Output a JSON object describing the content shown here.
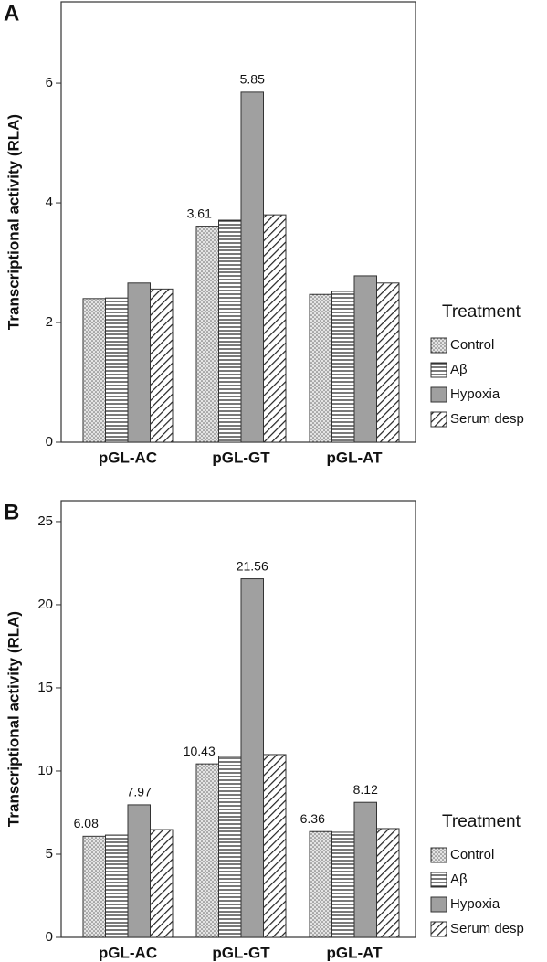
{
  "chart_data": [
    {
      "type": "bar",
      "panel": "A",
      "y_label": "Transcriptional activity (RLA)",
      "legend_title": "Treatment",
      "categories": [
        "pGL-AC",
        "pGL-GT",
        "pGL-AT"
      ],
      "ylim": [
        0,
        7.36
      ],
      "yticks": [
        0,
        2,
        4,
        6
      ],
      "series": [
        {
          "name": "Control",
          "color": "#d9d9d9",
          "pattern": "dots",
          "values": [
            2.4,
            3.61,
            2.47
          ],
          "value_labels": [
            null,
            "3.61",
            null
          ]
        },
        {
          "name": "Aβ",
          "color": "#ffffff",
          "pattern": "hlines",
          "values": [
            2.41,
            3.71,
            2.52
          ]
        },
        {
          "name": "Hypoxia",
          "color": "#a0a0a0",
          "pattern": "solid",
          "values": [
            2.66,
            5.85,
            2.78
          ],
          "value_labels": [
            null,
            "5.85",
            null
          ]
        },
        {
          "name": "Serum desp",
          "color": "#ffffff",
          "pattern": "diag",
          "values": [
            2.56,
            3.8,
            2.66
          ]
        }
      ]
    },
    {
      "type": "bar",
      "panel": "B",
      "y_label": "Transcriptional activity (RLA)",
      "legend_title": "Treatment",
      "categories": [
        "pGL-AC",
        "pGL-GT",
        "pGL-AT"
      ],
      "ylim": [
        0,
        26.26
      ],
      "yticks": [
        0,
        5,
        10,
        15,
        20,
        25
      ],
      "series": [
        {
          "name": "Control",
          "color": "#d9d9d9",
          "pattern": "dots",
          "values": [
            6.08,
            10.43,
            6.36
          ],
          "value_labels": [
            "6.08",
            "10.43",
            "6.36"
          ]
        },
        {
          "name": "Aβ",
          "color": "#ffffff",
          "pattern": "hlines",
          "values": [
            6.15,
            10.88,
            6.32
          ]
        },
        {
          "name": "Hypoxia",
          "color": "#a0a0a0",
          "pattern": "solid",
          "values": [
            7.97,
            21.56,
            8.12
          ],
          "value_labels": [
            "7.97",
            "21.56",
            "8.12"
          ]
        },
        {
          "name": "Serum desp",
          "color": "#ffffff",
          "pattern": "diag",
          "values": [
            6.48,
            10.99,
            6.54
          ]
        }
      ]
    }
  ]
}
